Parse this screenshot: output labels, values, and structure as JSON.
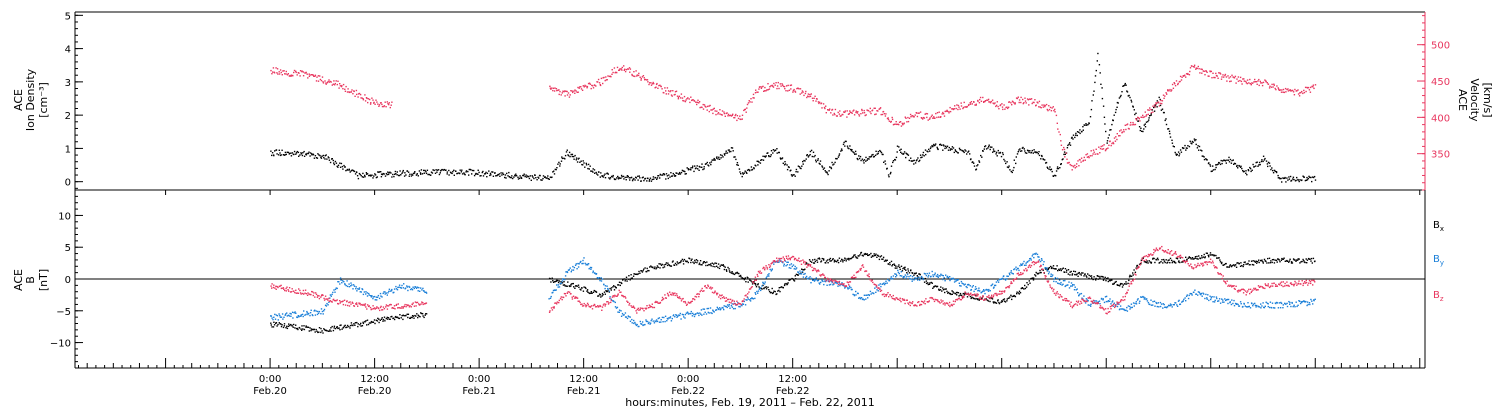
{
  "colors": {
    "black": "#000000",
    "density_trace": "#000000",
    "velocity_trace": "#e8375f",
    "bx": "#000000",
    "by": "#1a7fd8",
    "bz": "#e8375f"
  },
  "chart_data": [
    {
      "type": "scatter",
      "panel": "top",
      "left_axis": {
        "label_lines": [
          "ACE",
          "Ion Density",
          "[cm⁻³]"
        ],
        "ylim": [
          -0.25,
          5.1
        ],
        "ticks": [
          "0",
          "1",
          "2",
          "3",
          "4",
          "5"
        ]
      },
      "right_axis": {
        "label_lines": [
          "ACE",
          "Velocity",
          "[km/s]"
        ],
        "ylim": [
          300,
          545
        ],
        "ticks": [
          "350",
          "400",
          "450",
          "500"
        ]
      },
      "series": [
        {
          "key": "density",
          "axis": "left",
          "points": [
            [
              0,
              0.9
            ],
            [
              6,
              0.8
            ],
            [
              10,
              0.2
            ],
            [
              18,
              0.3
            ],
            [
              23,
              0.3
            ],
            [
              32,
              0.1
            ],
            [
              34,
              0.9
            ],
            [
              38,
              0.2
            ],
            [
              44,
              0.1
            ],
            [
              50,
              0.5
            ],
            [
              53,
              1.0
            ],
            [
              54,
              0.2
            ],
            [
              58,
              1.0
            ],
            [
              60,
              0.2
            ],
            [
              62,
              0.9
            ],
            [
              64,
              0.3
            ],
            [
              66,
              1.2
            ],
            [
              68,
              0.6
            ],
            [
              70,
              1.0
            ],
            [
              71,
              0.2
            ],
            [
              72,
              1.0
            ],
            [
              74,
              0.6
            ],
            [
              76,
              1.1
            ],
            [
              80,
              0.9
            ],
            [
              81,
              0.4
            ],
            [
              82,
              1.1
            ],
            [
              84,
              0.8
            ],
            [
              85,
              0.3
            ],
            [
              86,
              1.0
            ],
            [
              88,
              0.9
            ],
            [
              90,
              0.2
            ],
            [
              92,
              1.3
            ],
            [
              94,
              1.8
            ],
            [
              95,
              3.8
            ],
            [
              96,
              1.2
            ],
            [
              98,
              3.0
            ],
            [
              100,
              1.5
            ],
            [
              102,
              2.5
            ],
            [
              104,
              0.8
            ],
            [
              106,
              1.3
            ],
            [
              108,
              0.4
            ],
            [
              110,
              0.7
            ],
            [
              112,
              0.3
            ],
            [
              114,
              0.7
            ],
            [
              116,
              0.1
            ],
            [
              120,
              0.1
            ]
          ]
        },
        {
          "key": "velocity",
          "axis": "right",
          "points": [
            [
              0,
              465
            ],
            [
              4,
              460
            ],
            [
              8,
              445
            ],
            [
              10,
              433
            ],
            [
              12,
              420
            ],
            [
              14,
              418
            ],
            [
              32,
              440
            ],
            [
              34,
              432
            ],
            [
              38,
              450
            ],
            [
              40,
              470
            ],
            [
              42,
              460
            ],
            [
              44,
              445
            ],
            [
              46,
              435
            ],
            [
              48,
              425
            ],
            [
              50,
              415
            ],
            [
              52,
              405
            ],
            [
              54,
              400
            ],
            [
              56,
              440
            ],
            [
              58,
              445
            ],
            [
              60,
              440
            ],
            [
              62,
              430
            ],
            [
              64,
              410
            ],
            [
              66,
              405
            ],
            [
              70,
              410
            ],
            [
              72,
              390
            ],
            [
              74,
              405
            ],
            [
              76,
              400
            ],
            [
              78,
              410
            ],
            [
              80,
              420
            ],
            [
              82,
              425
            ],
            [
              84,
              415
            ],
            [
              86,
              425
            ],
            [
              88,
              420
            ],
            [
              90,
              410
            ],
            [
              91,
              355
            ],
            [
              92,
              330
            ],
            [
              94,
              350
            ],
            [
              96,
              360
            ],
            [
              98,
              385
            ],
            [
              100,
              400
            ],
            [
              102,
              420
            ],
            [
              104,
              450
            ],
            [
              106,
              470
            ],
            [
              108,
              460
            ],
            [
              110,
              455
            ],
            [
              112,
              450
            ],
            [
              114,
              448
            ],
            [
              116,
              440
            ],
            [
              118,
              435
            ],
            [
              120,
              442
            ]
          ]
        }
      ]
    },
    {
      "type": "scatter",
      "panel": "bottom",
      "left_axis": {
        "label_lines": [
          "ACE",
          "B",
          "[nT]"
        ],
        "ylim": [
          -14,
          14
        ],
        "ticks": [
          "−10",
          "−5",
          "0",
          "5",
          "10"
        ]
      },
      "legend": {
        "placement": "right",
        "items": [
          {
            "base": "B",
            "sub": "x",
            "color_key": "bx"
          },
          {
            "base": "B",
            "sub": "y",
            "color_key": "by"
          },
          {
            "base": "B",
            "sub": "z",
            "color_key": "bz"
          }
        ]
      },
      "series": [
        {
          "key": "bx",
          "points": [
            [
              0,
              -7
            ],
            [
              6,
              -8
            ],
            [
              10,
              -7
            ],
            [
              14,
              -6
            ],
            [
              18,
              -5.5
            ],
            [
              32,
              0
            ],
            [
              35,
              -1
            ],
            [
              38,
              -2.5
            ],
            [
              42,
              1
            ],
            [
              44,
              2
            ],
            [
              48,
              3
            ],
            [
              52,
              2
            ],
            [
              56,
              -1
            ],
            [
              58,
              -2
            ],
            [
              60,
              0
            ],
            [
              62,
              3
            ],
            [
              66,
              3
            ],
            [
              68,
              4
            ],
            [
              70,
              3.5
            ],
            [
              72,
              2
            ],
            [
              74,
              1
            ],
            [
              76,
              -1
            ],
            [
              78,
              -2
            ],
            [
              80,
              -2.5
            ],
            [
              82,
              -3
            ],
            [
              84,
              -3.5
            ],
            [
              86,
              -2
            ],
            [
              88,
              1
            ],
            [
              90,
              2
            ],
            [
              92,
              1
            ],
            [
              96,
              0
            ],
            [
              98,
              -1
            ],
            [
              100,
              3
            ],
            [
              104,
              3
            ],
            [
              108,
              4
            ],
            [
              110,
              2
            ],
            [
              114,
              3
            ],
            [
              120,
              3
            ]
          ]
        },
        {
          "key": "by",
          "points": [
            [
              0,
              -6
            ],
            [
              6,
              -5
            ],
            [
              8,
              0
            ],
            [
              12,
              -3
            ],
            [
              15,
              -1
            ],
            [
              18,
              -2
            ],
            [
              32,
              -3
            ],
            [
              34,
              1
            ],
            [
              36,
              3
            ],
            [
              38,
              0
            ],
            [
              40,
              -5
            ],
            [
              42,
              -7
            ],
            [
              46,
              -6
            ],
            [
              50,
              -5
            ],
            [
              54,
              -4
            ],
            [
              56,
              -2
            ],
            [
              58,
              3
            ],
            [
              60,
              2
            ],
            [
              62,
              0
            ],
            [
              66,
              -1
            ],
            [
              68,
              -3
            ],
            [
              70,
              -1
            ],
            [
              72,
              1
            ],
            [
              74,
              0
            ],
            [
              76,
              1
            ],
            [
              78,
              0
            ],
            [
              80,
              -1
            ],
            [
              82,
              -2
            ],
            [
              84,
              0
            ],
            [
              86,
              2
            ],
            [
              88,
              4
            ],
            [
              90,
              0
            ],
            [
              92,
              -1
            ],
            [
              94,
              -4
            ],
            [
              96,
              -3
            ],
            [
              98,
              -5
            ],
            [
              100,
              -3
            ],
            [
              102,
              -4
            ],
            [
              104,
              -4
            ],
            [
              106,
              -2
            ],
            [
              108,
              -3
            ],
            [
              112,
              -4
            ],
            [
              116,
              -4
            ],
            [
              120,
              -3.5
            ]
          ]
        },
        {
          "key": "bz",
          "points": [
            [
              0,
              -1
            ],
            [
              4,
              -2
            ],
            [
              8,
              -3.5
            ],
            [
              12,
              -4.5
            ],
            [
              16,
              -4
            ],
            [
              18,
              -3.5
            ],
            [
              32,
              -5
            ],
            [
              34,
              -2
            ],
            [
              36,
              -4
            ],
            [
              38,
              -4.5
            ],
            [
              40,
              -2
            ],
            [
              42,
              -5
            ],
            [
              44,
              -4
            ],
            [
              46,
              -2
            ],
            [
              48,
              -4
            ],
            [
              50,
              -1
            ],
            [
              52,
              -3
            ],
            [
              54,
              -4
            ],
            [
              56,
              1
            ],
            [
              58,
              3
            ],
            [
              60,
              3.5
            ],
            [
              62,
              2
            ],
            [
              64,
              0
            ],
            [
              66,
              -1
            ],
            [
              68,
              2
            ],
            [
              70,
              -2
            ],
            [
              72,
              -3
            ],
            [
              74,
              -4
            ],
            [
              76,
              -3
            ],
            [
              78,
              -4
            ],
            [
              80,
              -2
            ],
            [
              82,
              -3
            ],
            [
              84,
              -2
            ],
            [
              86,
              1
            ],
            [
              88,
              3
            ],
            [
              90,
              -2
            ],
            [
              92,
              -4
            ],
            [
              94,
              -3
            ],
            [
              96,
              -5
            ],
            [
              98,
              -3
            ],
            [
              100,
              3
            ],
            [
              102,
              5
            ],
            [
              104,
              4
            ],
            [
              106,
              2
            ],
            [
              108,
              3
            ],
            [
              110,
              -1
            ],
            [
              112,
              -2
            ],
            [
              114,
              -1
            ],
            [
              118,
              -0.5
            ],
            [
              120,
              -0.5
            ]
          ]
        }
      ]
    },
    {
      "type": "time_axis",
      "xlabel": "hours:minutes, Feb. 19, 2011 – Feb. 22, 2011",
      "xlim": [
        -22.4,
        132.6
      ],
      "ticks": [
        {
          "value": 0,
          "time": "0:00",
          "date": "Feb.20"
        },
        {
          "value": 12,
          "time": "12:00",
          "date": "Feb.20"
        },
        {
          "value": 24,
          "time": "0:00",
          "date": "Feb.21"
        },
        {
          "value": 36,
          "time": "12:00",
          "date": "Feb.21"
        },
        {
          "value": 48,
          "time": "0:00",
          "date": "Feb.22"
        },
        {
          "value": 60,
          "time": "12:00",
          "date": "Feb.22"
        }
      ]
    }
  ]
}
